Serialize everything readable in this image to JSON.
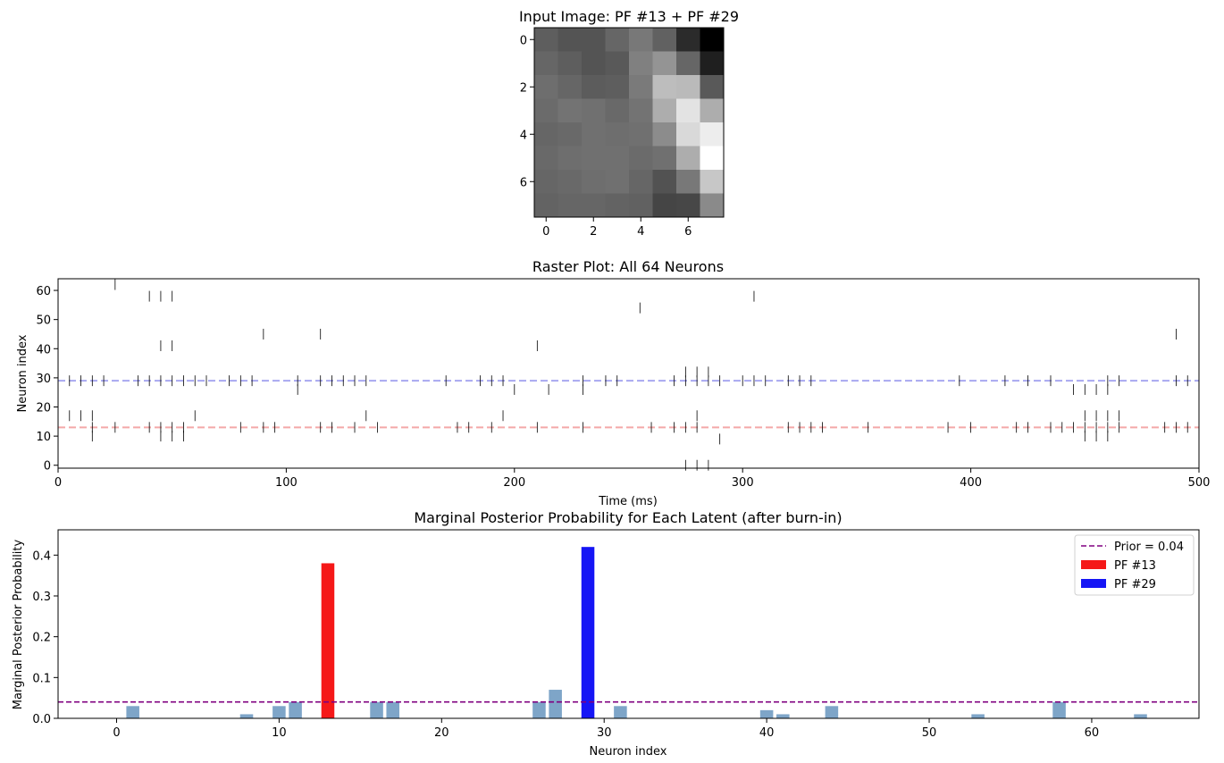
{
  "figure": {
    "background": "#ffffff"
  },
  "chart_data": [
    {
      "type": "heatmap",
      "title": "Input Image: PF #13 + PF #29",
      "colormap": "gray",
      "x_ticks": [
        0,
        2,
        4,
        6
      ],
      "y_ticks": [
        0,
        2,
        4,
        6
      ],
      "values": [
        [
          0.37,
          0.33,
          0.33,
          0.4,
          0.47,
          0.38,
          0.17,
          0.0
        ],
        [
          0.4,
          0.37,
          0.33,
          0.35,
          0.5,
          0.58,
          0.4,
          0.12
        ],
        [
          0.43,
          0.4,
          0.36,
          0.37,
          0.48,
          0.74,
          0.73,
          0.35
        ],
        [
          0.42,
          0.45,
          0.44,
          0.41,
          0.45,
          0.68,
          0.89,
          0.68
        ],
        [
          0.4,
          0.41,
          0.44,
          0.43,
          0.44,
          0.55,
          0.85,
          0.93
        ],
        [
          0.41,
          0.43,
          0.44,
          0.44,
          0.42,
          0.44,
          0.68,
          1.0
        ],
        [
          0.4,
          0.41,
          0.43,
          0.44,
          0.4,
          0.32,
          0.47,
          0.78
        ],
        [
          0.39,
          0.4,
          0.4,
          0.39,
          0.38,
          0.27,
          0.28,
          0.54
        ]
      ]
    },
    {
      "type": "scatter",
      "subtype": "raster",
      "title": "Raster Plot: All 64 Neurons",
      "xlabel": "Time (ms)",
      "ylabel": "Neuron index",
      "xlim": [
        0,
        500
      ],
      "ylim": [
        -1,
        64
      ],
      "x_ticks": [
        0,
        100,
        200,
        300,
        400,
        500
      ],
      "y_ticks": [
        0,
        10,
        20,
        30,
        40,
        50,
        60
      ],
      "spike_color": "#000000",
      "reference_lines": [
        {
          "y": 13,
          "color": "#f4a8a8",
          "style": "dashed"
        },
        {
          "y": 29,
          "color": "#a8a8f0",
          "style": "dashed"
        }
      ],
      "spikes": [
        [
          0,
          275
        ],
        [
          0,
          280
        ],
        [
          0,
          285
        ],
        [
          9,
          290
        ],
        [
          10,
          15
        ],
        [
          10,
          45
        ],
        [
          10,
          50
        ],
        [
          10,
          55
        ],
        [
          10,
          450
        ],
        [
          10,
          455
        ],
        [
          10,
          460
        ],
        [
          13,
          15
        ],
        [
          13,
          25
        ],
        [
          13,
          40
        ],
        [
          13,
          45
        ],
        [
          13,
          50
        ],
        [
          13,
          55
        ],
        [
          13,
          80
        ],
        [
          13,
          90
        ],
        [
          13,
          95
        ],
        [
          13,
          115
        ],
        [
          13,
          120
        ],
        [
          13,
          130
        ],
        [
          13,
          140
        ],
        [
          13,
          175
        ],
        [
          13,
          180
        ],
        [
          13,
          190
        ],
        [
          13,
          210
        ],
        [
          13,
          230
        ],
        [
          13,
          260
        ],
        [
          13,
          270
        ],
        [
          13,
          275
        ],
        [
          13,
          280
        ],
        [
          13,
          320
        ],
        [
          13,
          325
        ],
        [
          13,
          330
        ],
        [
          13,
          335
        ],
        [
          13,
          355
        ],
        [
          13,
          390
        ],
        [
          13,
          400
        ],
        [
          13,
          420
        ],
        [
          13,
          425
        ],
        [
          13,
          435
        ],
        [
          13,
          440
        ],
        [
          13,
          445
        ],
        [
          13,
          450
        ],
        [
          13,
          455
        ],
        [
          13,
          460
        ],
        [
          13,
          465
        ],
        [
          13,
          485
        ],
        [
          13,
          490
        ],
        [
          13,
          495
        ],
        [
          17,
          5
        ],
        [
          17,
          10
        ],
        [
          17,
          15
        ],
        [
          17,
          60
        ],
        [
          17,
          135
        ],
        [
          17,
          195
        ],
        [
          17,
          280
        ],
        [
          17,
          450
        ],
        [
          17,
          455
        ],
        [
          17,
          460
        ],
        [
          17,
          465
        ],
        [
          26,
          105
        ],
        [
          26,
          200
        ],
        [
          26,
          215
        ],
        [
          26,
          230
        ],
        [
          26,
          445
        ],
        [
          26,
          450
        ],
        [
          26,
          455
        ],
        [
          26,
          460
        ],
        [
          29,
          5
        ],
        [
          29,
          10
        ],
        [
          29,
          15
        ],
        [
          29,
          20
        ],
        [
          29,
          35
        ],
        [
          29,
          40
        ],
        [
          29,
          45
        ],
        [
          29,
          50
        ],
        [
          29,
          55
        ],
        [
          29,
          60
        ],
        [
          29,
          65
        ],
        [
          29,
          75
        ],
        [
          29,
          80
        ],
        [
          29,
          85
        ],
        [
          29,
          105
        ],
        [
          29,
          115
        ],
        [
          29,
          120
        ],
        [
          29,
          125
        ],
        [
          29,
          130
        ],
        [
          29,
          135
        ],
        [
          29,
          170
        ],
        [
          29,
          185
        ],
        [
          29,
          190
        ],
        [
          29,
          195
        ],
        [
          29,
          230
        ],
        [
          29,
          240
        ],
        [
          29,
          245
        ],
        [
          29,
          270
        ],
        [
          29,
          275
        ],
        [
          29,
          280
        ],
        [
          29,
          285
        ],
        [
          29,
          290
        ],
        [
          29,
          300
        ],
        [
          29,
          305
        ],
        [
          29,
          310
        ],
        [
          29,
          320
        ],
        [
          29,
          325
        ],
        [
          29,
          330
        ],
        [
          29,
          395
        ],
        [
          29,
          415
        ],
        [
          29,
          425
        ],
        [
          29,
          435
        ],
        [
          29,
          460
        ],
        [
          29,
          465
        ],
        [
          29,
          490
        ],
        [
          29,
          495
        ],
        [
          32,
          275
        ],
        [
          32,
          280
        ],
        [
          32,
          285
        ],
        [
          41,
          45
        ],
        [
          41,
          50
        ],
        [
          41,
          210
        ],
        [
          45,
          90
        ],
        [
          45,
          115
        ],
        [
          45,
          490
        ],
        [
          54,
          255
        ],
        [
          58,
          40
        ],
        [
          58,
          45
        ],
        [
          58,
          50
        ],
        [
          58,
          305
        ],
        [
          62,
          25
        ]
      ]
    },
    {
      "type": "bar",
      "title": "Marginal Posterior Probability for Each Latent (after burn-in)",
      "xlabel": "Neuron index",
      "ylabel": "Marginal Posterior Probability",
      "xlim": [
        -3.6,
        66.6
      ],
      "ylim": [
        0,
        0.462
      ],
      "x_ticks": [
        0,
        10,
        20,
        30,
        40,
        50,
        60
      ],
      "y_ticks": [
        0.0,
        0.1,
        0.2,
        0.3,
        0.4
      ],
      "y_tick_labels": [
        "0.0",
        "0.1",
        "0.2",
        "0.3",
        "0.4"
      ],
      "default_color": "#7ea5c8",
      "values": [
        0,
        0.03,
        0,
        0,
        0,
        0,
        0,
        0,
        0.01,
        0,
        0.03,
        0.04,
        0,
        0.38,
        0,
        0,
        0.04,
        0.04,
        0,
        0,
        0,
        0,
        0,
        0,
        0,
        0,
        0.04,
        0.07,
        0,
        0.42,
        0,
        0.03,
        0,
        0,
        0,
        0,
        0,
        0,
        0,
        0,
        0.02,
        0.01,
        0,
        0,
        0.03,
        0,
        0,
        0,
        0,
        0,
        0,
        0,
        0,
        0.01,
        0,
        0,
        0,
        0,
        0.04,
        0,
        0,
        0,
        0,
        0.01
      ],
      "highlights": [
        {
          "index": 13,
          "color": "#f51818"
        },
        {
          "index": 29,
          "color": "#1515f5"
        }
      ],
      "reference_line": {
        "y": 0.04,
        "color": "#800080",
        "style": "dashed"
      },
      "legend": {
        "placement": "top-right",
        "entries": [
          {
            "label": "Prior = 0.04",
            "kind": "line",
            "color": "#800080"
          },
          {
            "label": "PF #13",
            "kind": "patch",
            "color": "#f51818"
          },
          {
            "label": "PF #29",
            "kind": "patch",
            "color": "#1515f5"
          }
        ]
      }
    }
  ]
}
